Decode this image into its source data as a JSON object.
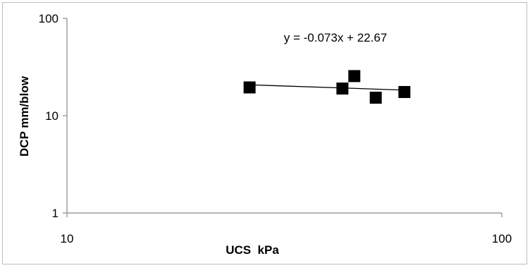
{
  "chart_data": {
    "type": "scatter",
    "xlabel": "UCS  kPa",
    "ylabel": "DCP mm/blow",
    "xscale": "log",
    "yscale": "log",
    "xlim": [
      10,
      100
    ],
    "ylim": [
      1,
      100
    ],
    "x_ticks": [
      "10",
      "100"
    ],
    "y_ticks": [
      "1",
      "10",
      "100"
    ],
    "points": [
      {
        "x": 26.3,
        "y": 19.5
      },
      {
        "x": 43.0,
        "y": 19.0
      },
      {
        "x": 45.8,
        "y": 25.5
      },
      {
        "x": 51.3,
        "y": 15.3
      },
      {
        "x": 59.7,
        "y": 17.5
      }
    ],
    "trendline": {
      "equation": "y = -0.073x + 22.67",
      "slope": -0.073,
      "intercept": 22.67,
      "x_range": [
        26.3,
        59.7
      ]
    },
    "marker_color": "#000000",
    "grid": false,
    "legend": "none"
  }
}
